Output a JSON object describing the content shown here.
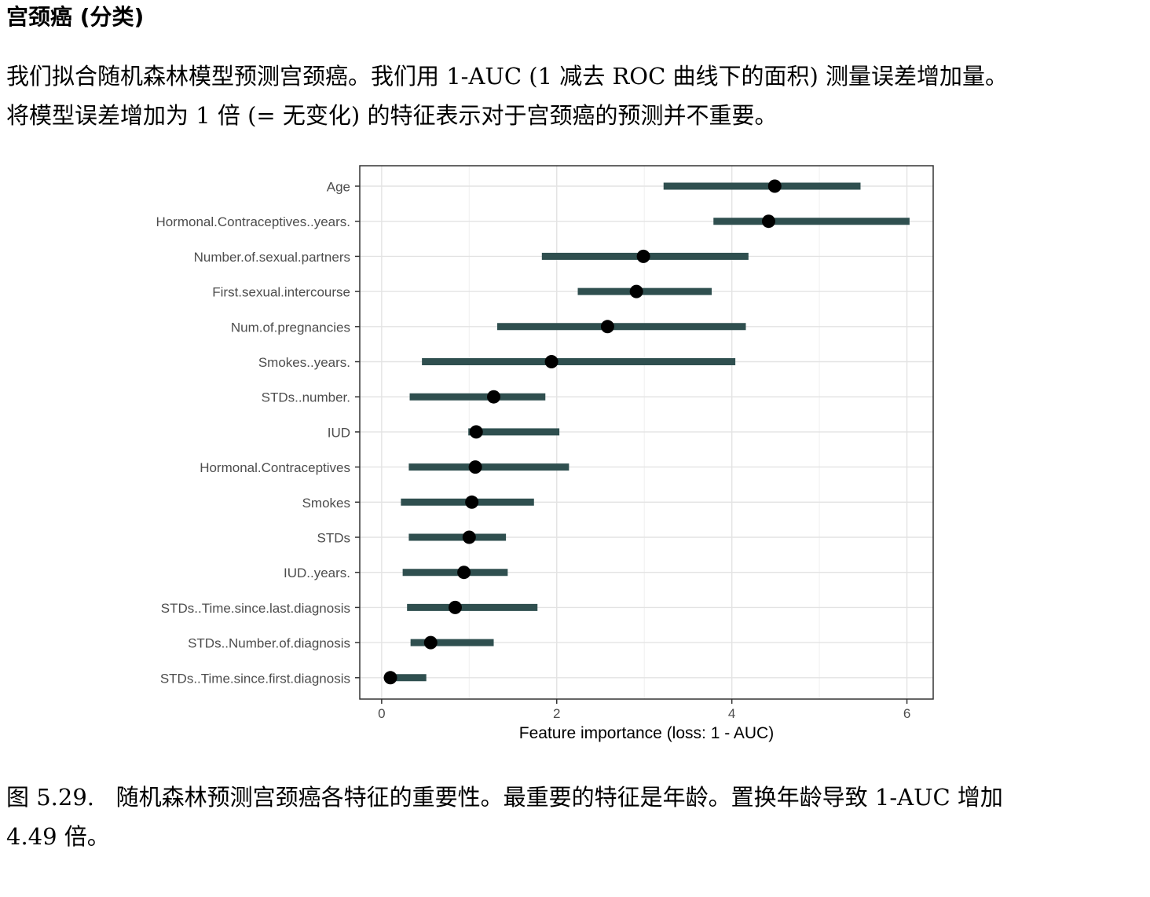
{
  "section": {
    "title": "宫颈癌 (分类)"
  },
  "intro": {
    "line1": "我们拟合随机森林模型预测宫颈癌。我们用 1-AUC (1 减去 ROC 曲线下的面积) 测量误差增加量。",
    "line2": "将模型误差增加为 1 倍 (= 无变化) 的特征表示对于宫颈癌的预测并不重要。"
  },
  "caption": {
    "label": "图 5.29.",
    "line1": "随机森林预测宫颈癌各特征的重要性。最重要的特征是年龄。置换年龄导致 1-AUC 增加",
    "line2": "4.49 倍。"
  },
  "colors": {
    "interval": "#2f4f4f",
    "point": "#000000",
    "grid_major": "#e3e3e3",
    "grid_minor": "#f0f0f0",
    "panel_border": "#333333",
    "axis_text": "#4d4d4d",
    "axis_title": "#000000"
  },
  "chart_data": {
    "type": "dot-interval",
    "orientation": "horizontal",
    "title": "",
    "xlabel": "Feature importance (loss: 1 - AUC)",
    "ylabel": "",
    "xlim": [
      -0.25,
      6.3
    ],
    "xticks": [
      0,
      2,
      4,
      6
    ],
    "grid": true,
    "legend": "none",
    "features": [
      {
        "name": "Age",
        "importance": 4.49,
        "low": 3.22,
        "high": 5.47
      },
      {
        "name": "Hormonal.Contraceptives..years.",
        "importance": 4.42,
        "low": 3.79,
        "high": 6.03
      },
      {
        "name": "Number.of.sexual.partners",
        "importance": 2.99,
        "low": 1.83,
        "high": 4.19
      },
      {
        "name": "First.sexual.intercourse",
        "importance": 2.91,
        "low": 2.24,
        "high": 3.77
      },
      {
        "name": "Num.of.pregnancies",
        "importance": 2.58,
        "low": 1.32,
        "high": 4.16
      },
      {
        "name": "Smokes..years.",
        "importance": 1.94,
        "low": 0.46,
        "high": 4.04
      },
      {
        "name": "STDs..number.",
        "importance": 1.28,
        "low": 0.32,
        "high": 1.87
      },
      {
        "name": "IUD",
        "importance": 1.08,
        "low": 0.99,
        "high": 2.03
      },
      {
        "name": "Hormonal.Contraceptives",
        "importance": 1.07,
        "low": 0.31,
        "high": 2.14
      },
      {
        "name": "Smokes",
        "importance": 1.03,
        "low": 0.22,
        "high": 1.74
      },
      {
        "name": "STDs",
        "importance": 1.0,
        "low": 0.31,
        "high": 1.42
      },
      {
        "name": "IUD..years.",
        "importance": 0.94,
        "low": 0.24,
        "high": 1.44
      },
      {
        "name": "STDs..Time.since.last.diagnosis",
        "importance": 0.84,
        "low": 0.29,
        "high": 1.78
      },
      {
        "name": "STDs..Number.of.diagnosis",
        "importance": 0.56,
        "low": 0.33,
        "high": 1.28
      },
      {
        "name": "STDs..Time.since.first.diagnosis",
        "importance": 0.1,
        "low": 0.08,
        "high": 0.51
      }
    ]
  }
}
